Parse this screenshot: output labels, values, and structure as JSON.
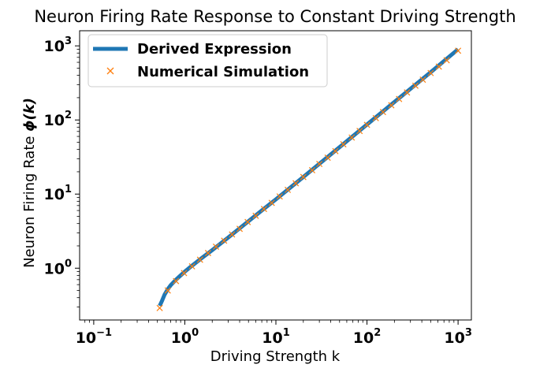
{
  "chart_data": {
    "type": "line",
    "title": "Neuron Firing Rate Response to Constant Driving Strength",
    "xlabel": "Driving Strength k",
    "ylabel_prefix": "Neuron Firing Rate ",
    "ylabel_symbol": "ϕ(k)",
    "xscale": "log",
    "yscale": "log",
    "xlim": [
      0.07,
      1400
    ],
    "ylim": [
      0.2,
      1600
    ],
    "x_ticks": [
      {
        "value": 0.1,
        "mantissa": "10",
        "exp": "−1"
      },
      {
        "value": 1,
        "mantissa": "10",
        "exp": "0"
      },
      {
        "value": 10,
        "mantissa": "10",
        "exp": "1"
      },
      {
        "value": 100,
        "mantissa": "10",
        "exp": "2"
      },
      {
        "value": 1000,
        "mantissa": "10",
        "exp": "3"
      }
    ],
    "y_ticks": [
      {
        "value": 1,
        "mantissa": "10",
        "exp": "0"
      },
      {
        "value": 10,
        "mantissa": "10",
        "exp": "1"
      },
      {
        "value": 100,
        "mantissa": "10",
        "exp": "2"
      },
      {
        "value": 1000,
        "mantissa": "10",
        "exp": "3"
      }
    ],
    "legend_location": "upper-left",
    "series": [
      {
        "name": "Derived Expression",
        "style": "line",
        "color": "#1f77b4",
        "x": [
          0.53,
          0.56,
          0.6,
          0.65,
          0.7,
          0.8,
          0.9,
          1.0,
          1.2,
          1.5,
          2.0,
          3.0,
          5.0,
          7.0,
          10,
          20,
          50,
          100,
          200,
          500,
          1000
        ],
        "y": [
          0.31,
          0.36,
          0.44,
          0.52,
          0.59,
          0.7,
          0.8,
          0.9,
          1.08,
          1.34,
          1.75,
          2.6,
          4.3,
          6.0,
          8.5,
          17,
          43,
          87,
          175,
          440,
          900
        ]
      },
      {
        "name": "Numerical Simulation",
        "style": "marker-x",
        "color": "#ff7f0e",
        "x": [
          0.53,
          0.65,
          0.8,
          0.98,
          1.2,
          1.47,
          1.8,
          2.2,
          2.7,
          3.3,
          4.0,
          4.9,
          6.0,
          7.4,
          9.0,
          11,
          13.5,
          16.5,
          20,
          25,
          30,
          37,
          45,
          55,
          68,
          83,
          100,
          125,
          150,
          185,
          225,
          275,
          340,
          410,
          500,
          615,
          750,
          1000
        ],
        "y": [
          0.29,
          0.5,
          0.67,
          0.86,
          1.06,
          1.3,
          1.6,
          1.95,
          2.35,
          2.85,
          3.4,
          4.2,
          5.1,
          6.3,
          7.6,
          9.3,
          11.4,
          14,
          17,
          21,
          25.5,
          31,
          38,
          47,
          58,
          71,
          86,
          106,
          128,
          158,
          192,
          235,
          290,
          350,
          430,
          525,
          640,
          860
        ]
      }
    ]
  }
}
